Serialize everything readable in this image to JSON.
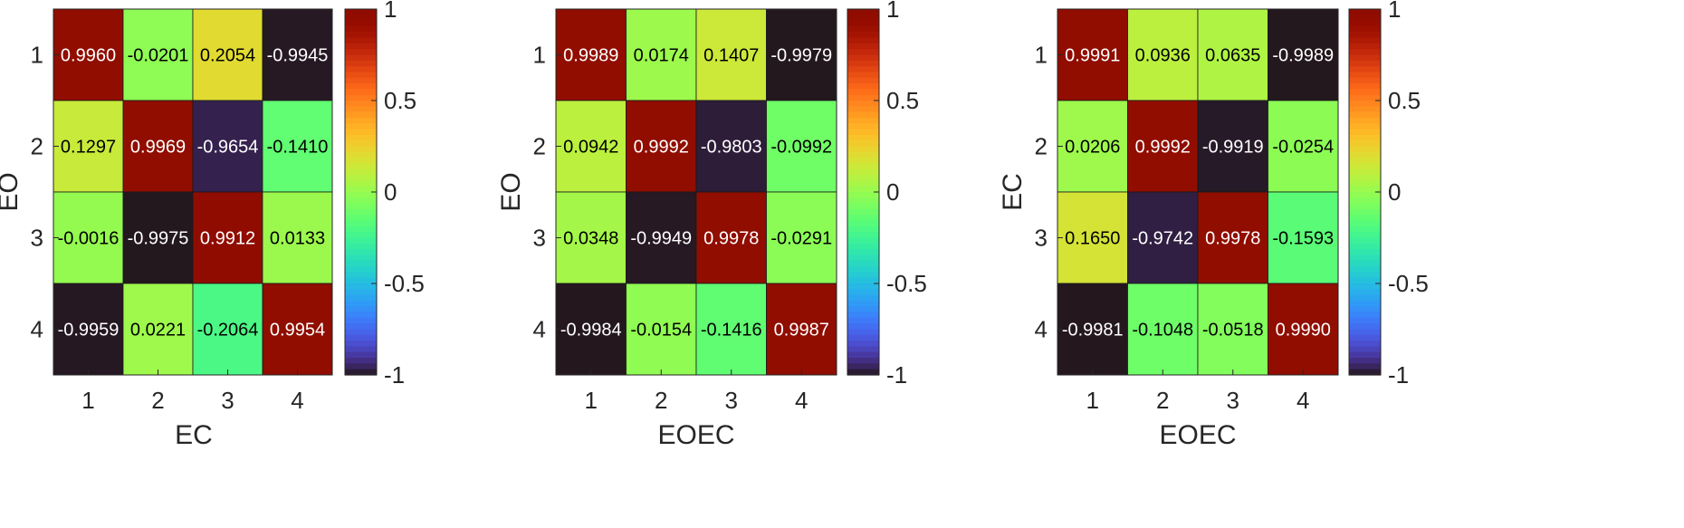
{
  "chart_data": [
    {
      "type": "heatmap",
      "xlabel": "EC",
      "ylabel": "EO",
      "x_categories": [
        "1",
        "2",
        "3",
        "4"
      ],
      "y_categories": [
        "1",
        "2",
        "3",
        "4"
      ],
      "values": [
        [
          "0.9960",
          "-0.0201",
          "0.2054",
          "-0.9945"
        ],
        [
          "0.1297",
          "0.9969",
          "-0.9654",
          "-0.1410"
        ],
        [
          "-0.0016",
          "-0.9975",
          "0.9912",
          "0.0133"
        ],
        [
          "-0.9959",
          "0.0221",
          "-0.2064",
          "0.9954"
        ]
      ],
      "colorbar": {
        "min": -1,
        "max": 1,
        "ticks": [
          "1",
          "0.5",
          "0",
          "-0.5",
          "-1"
        ]
      },
      "colormap": "turbo"
    },
    {
      "type": "heatmap",
      "xlabel": "EOEC",
      "ylabel": "EO",
      "x_categories": [
        "1",
        "2",
        "3",
        "4"
      ],
      "y_categories": [
        "1",
        "2",
        "3",
        "4"
      ],
      "values": [
        [
          "0.9989",
          "0.0174",
          "0.1407",
          "-0.9979"
        ],
        [
          "0.0942",
          "0.9992",
          "-0.9803",
          "-0.0992"
        ],
        [
          "0.0348",
          "-0.9949",
          "0.9978",
          "-0.0291"
        ],
        [
          "-0.9984",
          "-0.0154",
          "-0.1416",
          "0.9987"
        ]
      ],
      "colorbar": {
        "min": -1,
        "max": 1,
        "ticks": [
          "1",
          "0.5",
          "0",
          "-0.5",
          "-1"
        ]
      },
      "colormap": "turbo"
    },
    {
      "type": "heatmap",
      "xlabel": "EOEC",
      "ylabel": "EC",
      "x_categories": [
        "1",
        "2",
        "3",
        "4"
      ],
      "y_categories": [
        "1",
        "2",
        "3",
        "4"
      ],
      "values": [
        [
          "0.9991",
          "0.0936",
          "0.0635",
          "-0.9989"
        ],
        [
          "0.0206",
          "0.9992",
          "-0.9919",
          "-0.0254"
        ],
        [
          "0.1650",
          "-0.9742",
          "0.9978",
          "-0.1593"
        ],
        [
          "-0.9981",
          "-0.1048",
          "-0.0518",
          "0.9990"
        ]
      ],
      "colorbar": {
        "min": -1,
        "max": 1,
        "ticks": [
          "1",
          "0.5",
          "0",
          "-0.5",
          "-1"
        ]
      },
      "colormap": "turbo"
    }
  ]
}
